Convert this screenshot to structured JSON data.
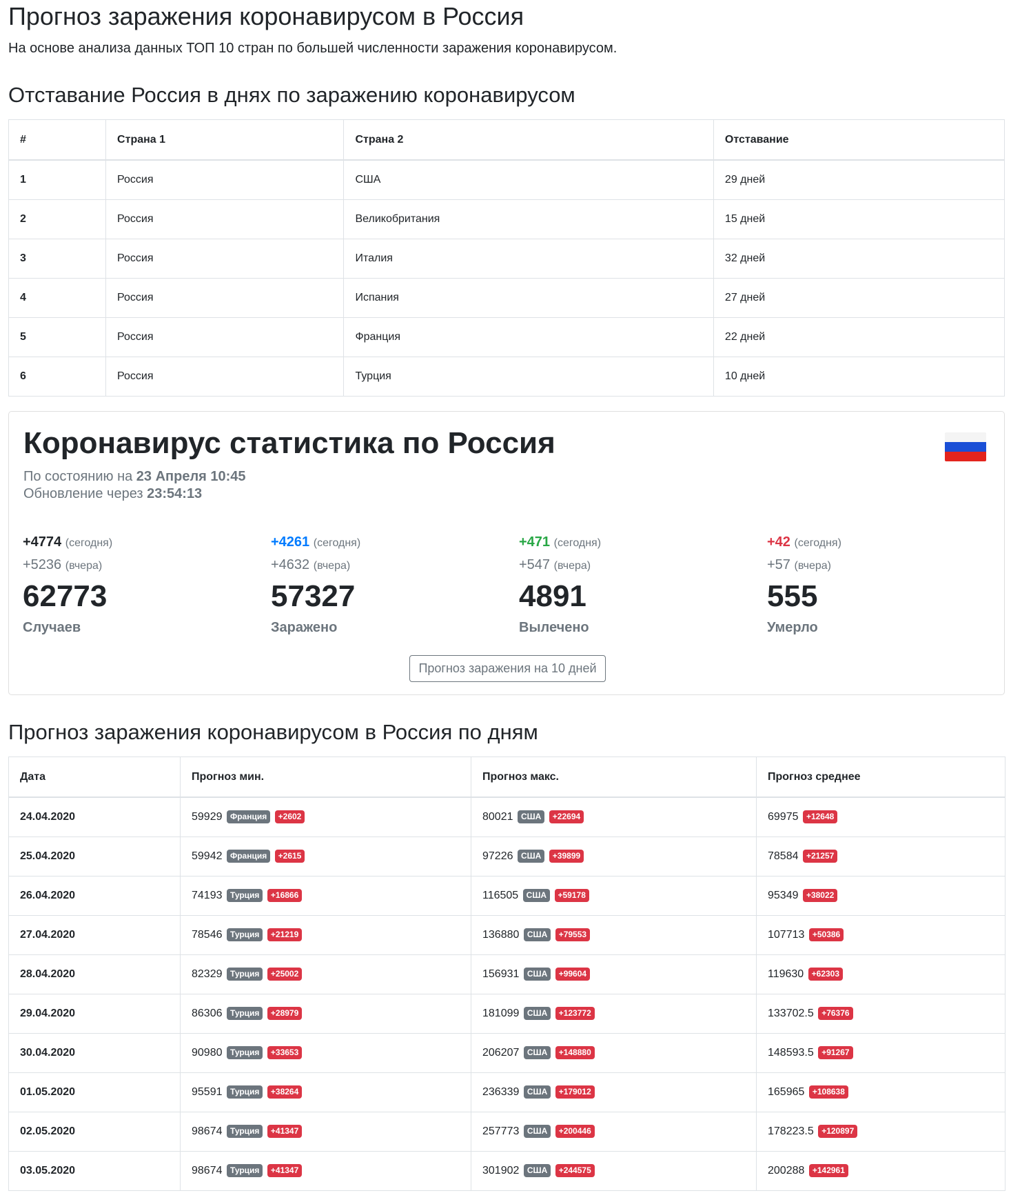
{
  "header": {
    "title": "Прогноз заражения коронавирусом в Россия",
    "lead": "На основе анализа данных ТОП 10 стран по большей численности заражения коронавирусом."
  },
  "lag": {
    "title": "Отставание Россия в днях по заражению коронавирусом",
    "columns": [
      "#",
      "Страна 1",
      "Страна 2",
      "Отставание"
    ],
    "rows": [
      {
        "n": "1",
        "country1": "Россия",
        "country2": "США",
        "lag": "29 дней"
      },
      {
        "n": "2",
        "country1": "Россия",
        "country2": "Великобритания",
        "lag": "15 дней"
      },
      {
        "n": "3",
        "country1": "Россия",
        "country2": "Италия",
        "lag": "32 дней"
      },
      {
        "n": "4",
        "country1": "Россия",
        "country2": "Испания",
        "lag": "27 дней"
      },
      {
        "n": "5",
        "country1": "Россия",
        "country2": "Франция",
        "lag": "22 дней"
      },
      {
        "n": "6",
        "country1": "Россия",
        "country2": "Турция",
        "lag": "10 дней"
      }
    ]
  },
  "stats": {
    "title": "Коронавирус статистика по Россия",
    "flag_icon": "russia-flag-icon",
    "status_prefix": "По состоянию на",
    "status_date": "23 Апреля 10:45",
    "update_prefix": "Обновление через",
    "update_time": "23:54:13",
    "today_label": "(сегодня)",
    "yesterday_label": "(вчера)",
    "cards": [
      {
        "today": "+4774",
        "yesterday": "+5236",
        "total": "62773",
        "label": "Случаев",
        "color": "#212529"
      },
      {
        "today": "+4261",
        "yesterday": "+4632",
        "total": "57327",
        "label": "Заражено",
        "color": "#007bff"
      },
      {
        "today": "+471",
        "yesterday": "+547",
        "total": "4891",
        "label": "Вылечено",
        "color": "#28a745"
      },
      {
        "today": "+42",
        "yesterday": "+57",
        "total": "555",
        "label": "Умерло",
        "color": "#dc3545"
      }
    ],
    "button_label": "Прогноз заражения на 10 дней"
  },
  "forecast": {
    "title": "Прогноз заражения коронавирусом в Россия по дням",
    "columns": [
      "Дата",
      "Прогноз мин.",
      "Прогноз макс.",
      "Прогноз среднее"
    ],
    "rows": [
      {
        "date": "24.04.2020",
        "min": "59929",
        "min_country": "Франция",
        "min_delta": "+2602",
        "max": "80021",
        "max_country": "США",
        "max_delta": "+22694",
        "avg": "69975",
        "avg_delta": "+12648"
      },
      {
        "date": "25.04.2020",
        "min": "59942",
        "min_country": "Франция",
        "min_delta": "+2615",
        "max": "97226",
        "max_country": "США",
        "max_delta": "+39899",
        "avg": "78584",
        "avg_delta": "+21257"
      },
      {
        "date": "26.04.2020",
        "min": "74193",
        "min_country": "Турция",
        "min_delta": "+16866",
        "max": "116505",
        "max_country": "США",
        "max_delta": "+59178",
        "avg": "95349",
        "avg_delta": "+38022"
      },
      {
        "date": "27.04.2020",
        "min": "78546",
        "min_country": "Турция",
        "min_delta": "+21219",
        "max": "136880",
        "max_country": "США",
        "max_delta": "+79553",
        "avg": "107713",
        "avg_delta": "+50386"
      },
      {
        "date": "28.04.2020",
        "min": "82329",
        "min_country": "Турция",
        "min_delta": "+25002",
        "max": "156931",
        "max_country": "США",
        "max_delta": "+99604",
        "avg": "119630",
        "avg_delta": "+62303"
      },
      {
        "date": "29.04.2020",
        "min": "86306",
        "min_country": "Турция",
        "min_delta": "+28979",
        "max": "181099",
        "max_country": "США",
        "max_delta": "+123772",
        "avg": "133702.5",
        "avg_delta": "+76376"
      },
      {
        "date": "30.04.2020",
        "min": "90980",
        "min_country": "Турция",
        "min_delta": "+33653",
        "max": "206207",
        "max_country": "США",
        "max_delta": "+148880",
        "avg": "148593.5",
        "avg_delta": "+91267"
      },
      {
        "date": "01.05.2020",
        "min": "95591",
        "min_country": "Турция",
        "min_delta": "+38264",
        "max": "236339",
        "max_country": "США",
        "max_delta": "+179012",
        "avg": "165965",
        "avg_delta": "+108638"
      },
      {
        "date": "02.05.2020",
        "min": "98674",
        "min_country": "Турция",
        "min_delta": "+41347",
        "max": "257773",
        "max_country": "США",
        "max_delta": "+200446",
        "avg": "178223.5",
        "avg_delta": "+120897"
      },
      {
        "date": "03.05.2020",
        "min": "98674",
        "min_country": "Турция",
        "min_delta": "+41347",
        "max": "301902",
        "max_country": "США",
        "max_delta": "+244575",
        "avg": "200288",
        "avg_delta": "+142961"
      }
    ]
  }
}
